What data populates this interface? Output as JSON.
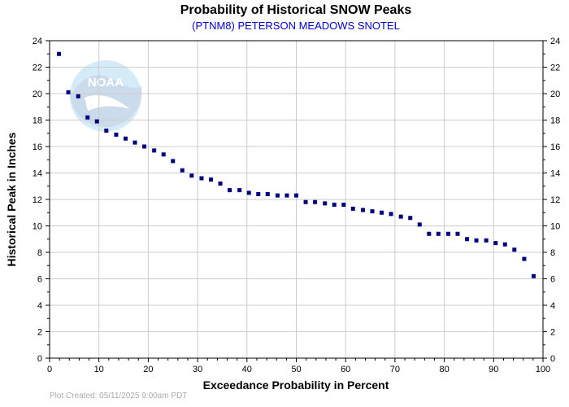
{
  "chart_data": {
    "type": "scatter",
    "title": "Probability of Historical SNOW Peaks",
    "subtitle": "(PTNM8) PETERSON MEADOWS SNOTEL",
    "xlabel": "Exceedance Probability in Percent",
    "ylabel": "Historical Peak in Inches",
    "xlim": [
      0,
      100
    ],
    "ylim": [
      0,
      24
    ],
    "x_ticks": [
      0,
      10,
      20,
      30,
      40,
      50,
      60,
      70,
      80,
      90,
      100
    ],
    "y_ticks": [
      0,
      2,
      4,
      6,
      8,
      10,
      12,
      14,
      16,
      18,
      20,
      22,
      24
    ],
    "grid": true,
    "legend": "none",
    "marker_color": "#000080",
    "subtitle_color": "#0000cc",
    "watermark": "NOAA",
    "x": [
      1.9,
      3.8,
      5.8,
      7.7,
      9.6,
      11.5,
      13.5,
      15.4,
      17.3,
      19.2,
      21.2,
      23.1,
      25.0,
      26.9,
      28.8,
      30.8,
      32.7,
      34.6,
      36.5,
      38.5,
      40.4,
      42.3,
      44.2,
      46.2,
      48.1,
      50.0,
      51.9,
      53.8,
      55.8,
      57.7,
      59.6,
      61.5,
      63.5,
      65.4,
      67.3,
      69.2,
      71.2,
      73.1,
      75.0,
      76.9,
      78.8,
      80.8,
      82.7,
      84.6,
      86.5,
      88.5,
      90.4,
      92.3,
      94.2,
      96.2,
      98.1
    ],
    "y": [
      23.0,
      20.1,
      19.8,
      18.2,
      17.9,
      17.2,
      16.9,
      16.6,
      16.3,
      16.0,
      15.7,
      15.4,
      14.9,
      14.2,
      13.8,
      13.6,
      13.5,
      13.2,
      12.7,
      12.7,
      12.5,
      12.4,
      12.4,
      12.3,
      12.3,
      12.3,
      11.8,
      11.8,
      11.7,
      11.6,
      11.6,
      11.3,
      11.2,
      11.1,
      11.0,
      10.9,
      10.7,
      10.6,
      10.1,
      9.4,
      9.4,
      9.4,
      9.4,
      9.0,
      8.9,
      8.9,
      8.7,
      8.6,
      8.2,
      7.5,
      6.2
    ]
  },
  "footer": {
    "plot_created": "Plot Created: 05/11/2025 9:00am PDT"
  }
}
